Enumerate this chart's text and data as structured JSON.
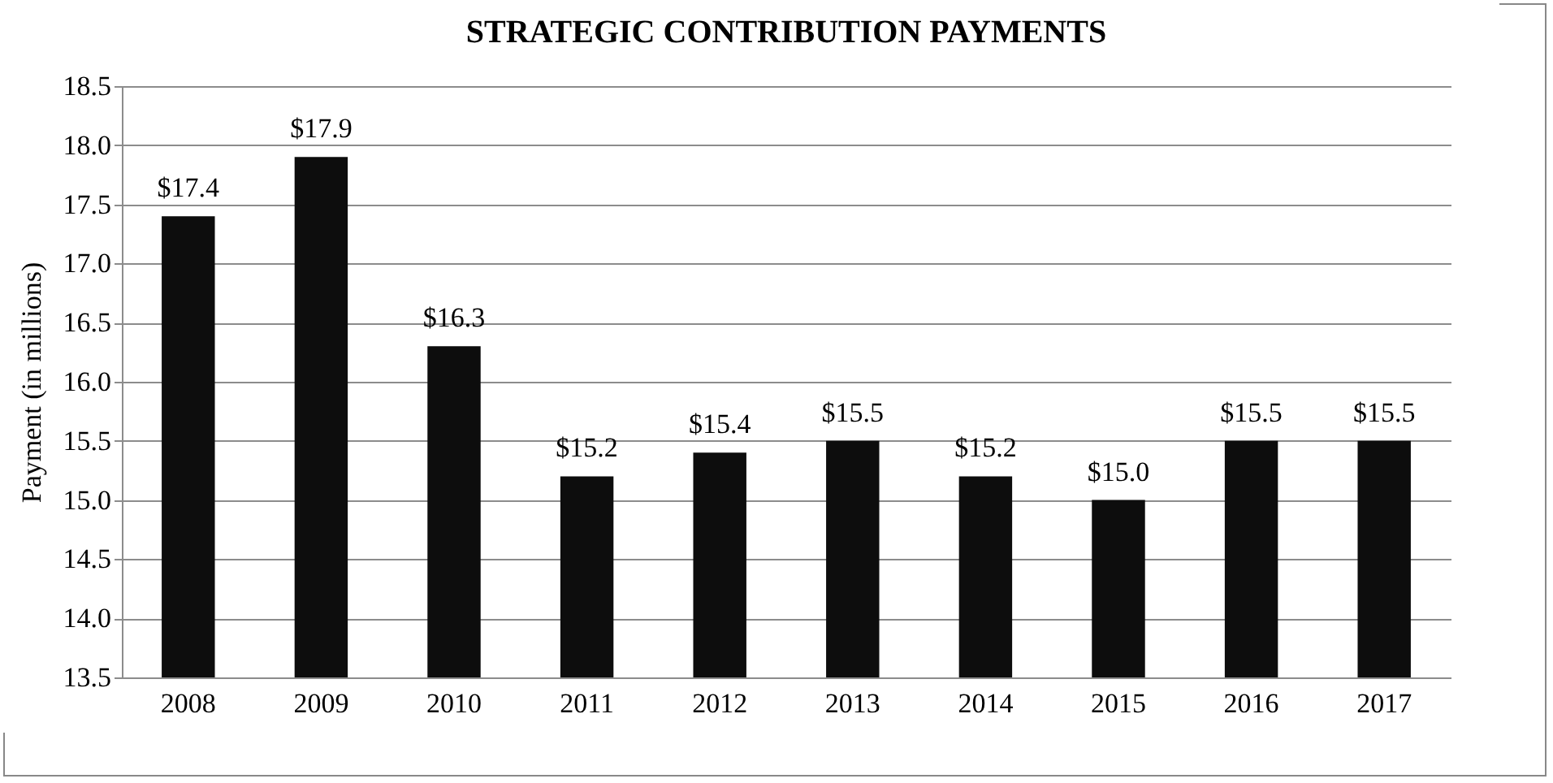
{
  "chart_data": {
    "type": "bar",
    "title": "STRATEGIC CONTRIBUTION PAYMENTS",
    "ylabel": "Payment (in millions)",
    "categories": [
      "2008",
      "2009",
      "2010",
      "2011",
      "2012",
      "2013",
      "2014",
      "2015",
      "2016",
      "2017"
    ],
    "values": [
      17.4,
      17.9,
      16.3,
      15.2,
      15.4,
      15.5,
      15.2,
      15.0,
      15.5,
      15.5
    ],
    "value_labels": [
      "$17.4",
      "$17.9",
      "$16.3",
      "$15.2",
      "$15.4",
      "$15.5",
      "$15.2",
      "$15.0",
      "$15.5",
      "$15.5"
    ],
    "color": "#0d0d0d",
    "ylim": [
      13.5,
      18.5
    ],
    "yticks": [
      13.5,
      {
        "value": 14,
        "label": "14.0"
      },
      14.5,
      {
        "value": 15,
        "label": "15.0"
      },
      15.5,
      {
        "value": 16,
        "label": "16.0"
      },
      16.5,
      {
        "value": 17,
        "label": "17.0"
      },
      17.5,
      {
        "value": 18,
        "label": "18.0"
      },
      18.5
    ],
    "grid": "y"
  }
}
